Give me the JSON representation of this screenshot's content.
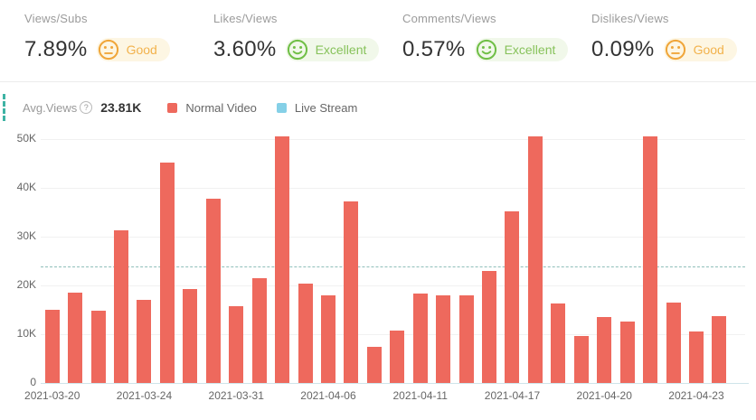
{
  "cards": [
    {
      "title": "Views/Subs",
      "value": "7.89%",
      "rating": "Good",
      "mood": "neutral"
    },
    {
      "title": "Likes/Views",
      "value": "3.60%",
      "rating": "Excellent",
      "mood": "happy"
    },
    {
      "title": "Comments/Views",
      "value": "0.57%",
      "rating": "Excellent",
      "mood": "happy"
    },
    {
      "title": "Dislikes/Views",
      "value": "0.09%",
      "rating": "Good",
      "mood": "neutral"
    }
  ],
  "chart_header": {
    "avg_label": "Avg.Views",
    "help_glyph": "?",
    "avg_value": "23.81K"
  },
  "legend": [
    {
      "label": "Normal Video",
      "color": "#ee695d"
    },
    {
      "label": "Live Stream",
      "color": "#85d0e7"
    }
  ],
  "colors": {
    "bar": "#ee695d",
    "live_stream": "#85d0e7",
    "avg_line": "#8fbfba",
    "section_accent": "#3eb3a4",
    "good_icon": "#f0a63a",
    "good_text": "#f2b24c",
    "good_bg": "#fdf6e3",
    "excellent_icon": "#70bf47",
    "excellent_text": "#87c25b",
    "excellent_bg": "#f1f8ea",
    "gridline": "#f1f1f1",
    "axis_line": "#cfe4ea",
    "title_gray": "#9b9b9b",
    "value_dark": "#333333",
    "axis_text": "#666666"
  },
  "chart_data": {
    "type": "bar",
    "title": "",
    "xlabel": "",
    "ylabel": "",
    "grid": true,
    "legend_position": "top",
    "ylim_k": [
      0,
      52.5
    ],
    "y_ticks_k": [
      0,
      10,
      20,
      30,
      40,
      50
    ],
    "y_tick_labels": [
      "0",
      "10K",
      "20K",
      "30K",
      "40K",
      "50K"
    ],
    "average_k": 23.81,
    "series": [
      {
        "name": "Normal Video",
        "color": "#ee695d",
        "values_k": [
          15.0,
          18.5,
          14.8,
          31.3,
          17.0,
          45.2,
          19.3,
          37.7,
          15.8,
          21.4,
          50.6,
          20.4,
          17.9,
          37.3,
          7.5,
          10.7,
          18.4,
          17.9,
          18.0,
          22.9,
          35.1,
          50.6,
          16.3,
          9.6,
          13.5,
          12.6,
          50.6,
          16.5,
          10.5,
          13.7
        ]
      },
      {
        "name": "Live Stream",
        "color": "#85d0e7",
        "values_k": []
      }
    ],
    "x_tick_labels": [
      {
        "bar_index": 0,
        "label": "2021-03-20"
      },
      {
        "bar_index": 4,
        "label": "2021-03-24"
      },
      {
        "bar_index": 8,
        "label": "2021-03-31"
      },
      {
        "bar_index": 12,
        "label": "2021-04-06"
      },
      {
        "bar_index": 16,
        "label": "2021-04-11"
      },
      {
        "bar_index": 20,
        "label": "2021-04-17"
      },
      {
        "bar_index": 24,
        "label": "2021-04-20"
      },
      {
        "bar_index": 28,
        "label": "2021-04-23"
      }
    ]
  }
}
